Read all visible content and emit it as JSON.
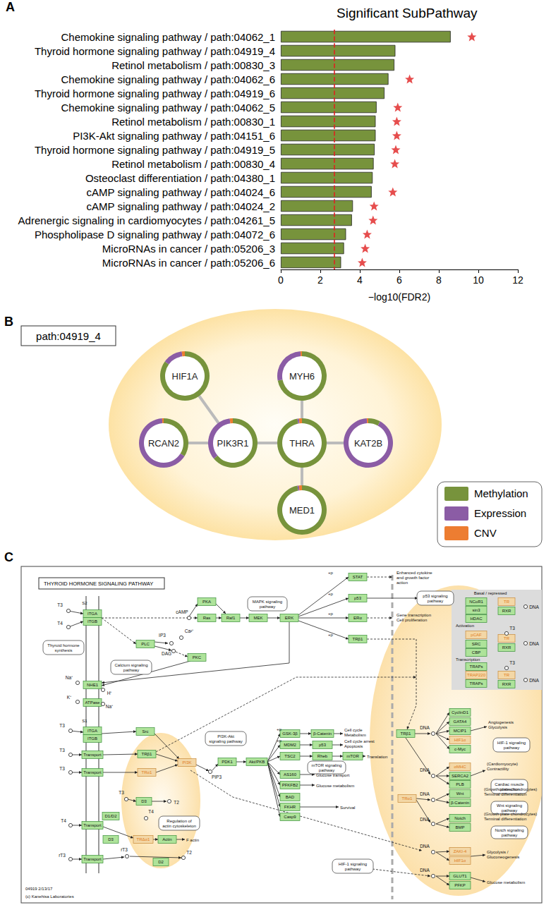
{
  "chart_data": {
    "type": "bar",
    "orientation": "horizontal",
    "panel": "A",
    "title": "Significant SubPathway",
    "x_label": "−log10(FDR2)",
    "categories": [
      "Chemokine signaling pathway / path:04062_1",
      "Thyroid hormone signaling pathway / path:04919_4",
      "Retinol metabolism / path:00830_3",
      "Chemokine signaling pathway / path:04062_6",
      "Thyroid hormone signaling pathway / path:04919_6",
      "Chemokine signaling pathway / path:04062_5",
      "Retinol metabolism / path:00830_1",
      "PI3K-Akt signaling pathway / path:04151_6",
      "Thyroid hormone signaling pathway / path:04919_5",
      "Retinol metabolism / path:00830_4",
      "Osteoclast differentiation / path:04380_1",
      "cAMP signaling pathway / path:04024_6",
      "cAMP signaling pathway / path:04024_2",
      "Adrenergic signaling in cardiomyocytes / path:04261_5",
      "Phospholipase D signaling pathway / path:04072_6",
      "MicroRNAs in cancer / path:05206_3",
      "MicroRNAs in cancer / path:05206_6"
    ],
    "values": [
      8.6,
      5.8,
      5.75,
      5.45,
      5.25,
      4.85,
      4.8,
      4.8,
      4.75,
      4.7,
      4.65,
      4.6,
      3.65,
      3.6,
      3.3,
      3.2,
      3.05
    ],
    "significant": [
      true,
      false,
      false,
      true,
      false,
      true,
      true,
      true,
      true,
      true,
      false,
      true,
      true,
      true,
      true,
      true,
      true
    ],
    "threshold": 2.7,
    "color": "#77933c",
    "xlim": [
      0,
      12
    ],
    "xticks": [
      0,
      2,
      4,
      6,
      8,
      10,
      12
    ],
    "grid": false
  },
  "panel_b": {
    "label": "B",
    "subpathway": "path:04919_4",
    "legend": [
      {
        "name": "Methylation",
        "color": "#77933c"
      },
      {
        "name": "Expression",
        "color": "#8b5ca5"
      },
      {
        "name": "CNV",
        "color": "#ed7d31"
      }
    ],
    "nodes": [
      {
        "label": "HIF1A",
        "values": [
          85,
          13,
          2
        ]
      },
      {
        "label": "MYH6",
        "values": [
          72,
          27,
          1
        ]
      },
      {
        "label": "RCAN2",
        "values": [
          34,
          65,
          1
        ]
      },
      {
        "label": "PIK3R1",
        "values": [
          64,
          34,
          2
        ]
      },
      {
        "label": "THRA",
        "values": [
          97,
          1,
          2
        ]
      },
      {
        "label": "KAT2B",
        "values": [
          8,
          91,
          1
        ]
      },
      {
        "label": "MED1",
        "values": [
          97,
          1,
          2
        ]
      }
    ],
    "edges": [
      [
        "HIF1A",
        "PIK3R1"
      ],
      [
        "RCAN2",
        "PIK3R1"
      ],
      [
        "PIK3R1",
        "THRA"
      ],
      [
        "MYH6",
        "THRA"
      ],
      [
        "THRA",
        "KAT2B"
      ],
      [
        "THRA",
        "MED1"
      ]
    ]
  },
  "panel_c": {
    "label": "C",
    "title": "THYROID HORMONE SIGNALING PATHWAY",
    "genes": [
      {
        "label": "ITGA",
        "color": "green"
      },
      {
        "label": "ITGB",
        "color": "green"
      },
      {
        "label": "PLC",
        "color": "green"
      },
      {
        "label": "PKC",
        "color": "green"
      },
      {
        "label": "PKA",
        "color": "green"
      },
      {
        "label": "Ras",
        "color": "green"
      },
      {
        "label": "Raf1",
        "color": "green"
      },
      {
        "label": "MEK",
        "color": "green"
      },
      {
        "label": "ERK",
        "color": "green"
      },
      {
        "label": "STAT",
        "color": "green"
      },
      {
        "label": "p53",
        "color": "green"
      },
      {
        "label": "ERα",
        "color": "green"
      },
      {
        "label": "TRβ1",
        "color": "green"
      },
      {
        "label": "NHE1",
        "color": "green"
      },
      {
        "label": "ATPase",
        "color": "green"
      },
      {
        "label": "ITGA",
        "color": "green"
      },
      {
        "label": "ITGB",
        "color": "green"
      },
      {
        "label": "Src",
        "color": "green"
      },
      {
        "label": "Transport",
        "color": "green"
      },
      {
        "label": "TRβ1",
        "color": "green"
      },
      {
        "label": "Transport",
        "color": "green"
      },
      {
        "label": "TRα1",
        "color": "orange"
      },
      {
        "label": "PI3K",
        "color": "orange"
      },
      {
        "label": "PDK1",
        "color": "green"
      },
      {
        "label": "Akt/PKB",
        "color": "green"
      },
      {
        "label": "GSK-3β",
        "color": "green"
      },
      {
        "label": "β-Catenin",
        "color": "green"
      },
      {
        "label": "MDM2",
        "color": "green"
      },
      {
        "label": "p53",
        "color": "green"
      },
      {
        "label": "TSC2",
        "color": "green"
      },
      {
        "label": "Rheb",
        "color": "green"
      },
      {
        "label": "mTOR",
        "color": "green"
      },
      {
        "label": "AS160",
        "color": "green"
      },
      {
        "label": "PFKFB2",
        "color": "green"
      },
      {
        "label": "BAD",
        "color": "green"
      },
      {
        "label": "FKHR",
        "color": "green"
      },
      {
        "label": "Casp9",
        "color": "green"
      },
      {
        "label": "D3",
        "color": "green"
      },
      {
        "label": "D1/D2",
        "color": "green"
      },
      {
        "label": "Transport",
        "color": "green"
      },
      {
        "label": "TRΔα1",
        "color": "orange"
      },
      {
        "label": "Actin",
        "color": "green"
      },
      {
        "label": "D3",
        "color": "green"
      },
      {
        "label": "D2",
        "color": "green"
      },
      {
        "label": "Transport",
        "color": "green"
      },
      {
        "label": "NCoR1",
        "color": "green"
      },
      {
        "label": "sin3",
        "color": "green"
      },
      {
        "label": "HDAC",
        "color": "green"
      },
      {
        "label": "TR",
        "color": "orange"
      },
      {
        "label": "RXR",
        "color": "green"
      },
      {
        "label": "pCAF",
        "color": "orange"
      },
      {
        "label": "SRC",
        "color": "green"
      },
      {
        "label": "CBP",
        "color": "green"
      },
      {
        "label": "TR",
        "color": "orange"
      },
      {
        "label": "RXR",
        "color": "green"
      },
      {
        "label": "TRAPs",
        "color": "green"
      },
      {
        "label": "TRAP220",
        "color": "orange"
      },
      {
        "label": "TRAPs",
        "color": "green"
      },
      {
        "label": "TR",
        "color": "orange"
      },
      {
        "label": "RXR",
        "color": "green"
      },
      {
        "label": "TRβ1",
        "color": "green"
      },
      {
        "label": "CyclinD1",
        "color": "green"
      },
      {
        "label": "GATA4",
        "color": "green"
      },
      {
        "label": "MCIP1",
        "color": "green"
      },
      {
        "label": "HIF1α",
        "color": "orange"
      },
      {
        "label": "c-Myc",
        "color": "green"
      },
      {
        "label": "αMHC",
        "color": "orange"
      },
      {
        "label": "SERCA2",
        "color": "green"
      },
      {
        "label": "PLB",
        "color": "green"
      },
      {
        "label": "TRα1",
        "color": "orange"
      },
      {
        "label": "Wnt",
        "color": "green"
      },
      {
        "label": "β-Catenin",
        "color": "green"
      },
      {
        "label": "Notch",
        "color": "green"
      },
      {
        "label": "BMP",
        "color": "green"
      },
      {
        "label": "ZAKI-4",
        "color": "orange"
      },
      {
        "label": "HIF1α",
        "color": "orange"
      },
      {
        "label": "GLUT1",
        "color": "green"
      },
      {
        "label": "PFKP",
        "color": "green"
      }
    ],
    "compounds": [
      "T3",
      "T4",
      "cAMP",
      "IP3",
      "Ca²⁺",
      "DAG",
      "Na⁺",
      "H⁺",
      "K⁺",
      "Na⁺",
      "T3",
      "T3",
      "T3",
      "PIP3",
      "T3",
      "T2",
      "T4",
      "T4",
      "rT3",
      "T2",
      "rT3",
      "DNA",
      "T3",
      "DNA",
      "T3",
      "DNA",
      "DNA",
      "DNA",
      "DNA",
      "DNA",
      "DNA",
      "DNA"
    ],
    "pathways": [
      [
        "Thyroid hormone",
        "synthesis"
      ],
      [
        "Calcium signaling",
        "pathway"
      ],
      [
        "MAPK signaling",
        "pathway"
      ],
      [
        "p53 signaling",
        "pathway"
      ],
      [
        "PI3K-Akt",
        "signaling pathway"
      ],
      [
        "mTOR signaling",
        "pathway"
      ],
      [
        "Regulation of",
        "actin cytoskeleton"
      ],
      [
        "HIF-1 signaling",
        "pathway"
      ],
      [
        "Cardiac muscle",
        "contraction"
      ],
      [
        "Wnt signaling",
        "pathway"
      ],
      [
        "Notch signaling",
        "pathway"
      ],
      [
        "HIF-1 signaling",
        "pathway"
      ]
    ],
    "texts": [
      [
        "Enhanced cytokine",
        "and growth factor",
        "action"
      ],
      [
        "Gene transcription",
        "Cell proliferation"
      ],
      [
        "Cell cycle",
        "Metabolism"
      ],
      [
        "Cell cycle arrest",
        "Apoptosis"
      ],
      [
        "Translation"
      ],
      [
        "Glucose transport"
      ],
      [
        "Glucose metabolism"
      ],
      [
        "Survival"
      ],
      [
        "F actin"
      ],
      [
        "Angiogenesis",
        "Glycolysis"
      ],
      [
        "(Cardiomyocyte)",
        "Contractility"
      ],
      [
        "(Growth plate chondrocytes)",
        "Terminal differentiation"
      ],
      [
        "(Growth plate chondrocytes)",
        "Terminal differentiation"
      ],
      [
        "Glycolysis /",
        "Gluconeogenesis"
      ],
      [
        "Glucose metabolism"
      ],
      [
        "Basal / repressed"
      ],
      [
        "Activation"
      ],
      [
        "Transcription"
      ],
      [
        "S2"
      ],
      [
        "S1"
      ],
      [
        "04919 2/13/17"
      ],
      [
        "(c) Kanehisa Laboratories"
      ],
      [
        "+p"
      ],
      [
        "+p"
      ],
      [
        "+p"
      ],
      [
        "+p"
      ],
      [
        "+p"
      ],
      [
        "+p"
      ]
    ]
  }
}
